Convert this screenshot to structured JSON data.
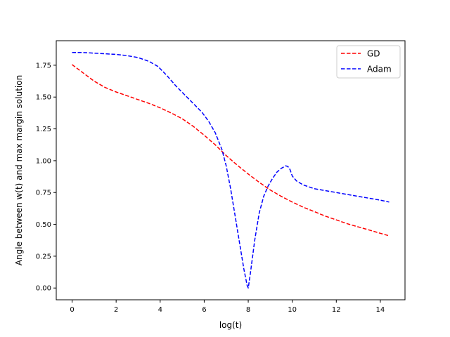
{
  "chart_data": {
    "type": "line",
    "title": "",
    "xlabel": "log(t)",
    "ylabel": "Angle between w(t) and max margin solution",
    "xlim": [
      -0.72,
      15.12
    ],
    "ylim": [
      -0.0925,
      1.9425
    ],
    "xticks": [
      0,
      2,
      4,
      6,
      8,
      10,
      12,
      14
    ],
    "xtick_labels": [
      "0",
      "2",
      "4",
      "6",
      "8",
      "10",
      "12",
      "14"
    ],
    "yticks": [
      0.0,
      0.25,
      0.5,
      0.75,
      1.0,
      1.25,
      1.5,
      1.75
    ],
    "ytick_labels": [
      "0.00",
      "0.25",
      "0.50",
      "0.75",
      "1.00",
      "1.25",
      "1.50",
      "1.75"
    ],
    "grid": false,
    "legend_position": "upper right",
    "series": [
      {
        "name": "GD",
        "color": "#ff0000",
        "linestyle": "dashed",
        "x": [
          0,
          0.5,
          1.0,
          1.5,
          2.0,
          2.5,
          3.0,
          3.5,
          4.0,
          4.5,
          5.0,
          5.5,
          6.0,
          6.5,
          7.0,
          7.5,
          8.0,
          8.5,
          9.0,
          9.5,
          10.0,
          10.5,
          11.0,
          11.5,
          12.0,
          12.5,
          13.0,
          13.5,
          14.0,
          14.4
        ],
        "y": [
          1.755,
          1.69,
          1.625,
          1.575,
          1.54,
          1.51,
          1.48,
          1.45,
          1.415,
          1.375,
          1.33,
          1.27,
          1.2,
          1.125,
          1.04,
          0.965,
          0.895,
          0.83,
          0.77,
          0.72,
          0.675,
          0.635,
          0.6,
          0.565,
          0.535,
          0.505,
          0.48,
          0.455,
          0.43,
          0.41
        ]
      },
      {
        "name": "Adam",
        "color": "#0000ff",
        "linestyle": "dashed",
        "x": [
          0,
          0.5,
          1.0,
          1.5,
          2.0,
          2.5,
          3.0,
          3.5,
          3.9,
          4.3,
          4.7,
          5.1,
          5.5,
          5.9,
          6.2,
          6.5,
          6.8,
          7.0,
          7.2,
          7.4,
          7.6,
          7.8,
          7.95,
          8.0,
          8.1,
          8.3,
          8.5,
          8.7,
          8.9,
          9.1,
          9.3,
          9.5,
          9.7,
          9.8,
          9.9,
          10.0,
          10.2,
          10.5,
          11.0,
          11.5,
          12.0,
          12.5,
          13.0,
          13.5,
          14.0,
          14.4
        ],
        "y": [
          1.85,
          1.85,
          1.845,
          1.84,
          1.835,
          1.825,
          1.81,
          1.78,
          1.74,
          1.67,
          1.59,
          1.52,
          1.45,
          1.38,
          1.31,
          1.22,
          1.09,
          0.96,
          0.78,
          0.57,
          0.36,
          0.15,
          0.02,
          0.0,
          0.12,
          0.38,
          0.59,
          0.72,
          0.8,
          0.86,
          0.91,
          0.94,
          0.96,
          0.955,
          0.93,
          0.88,
          0.84,
          0.81,
          0.78,
          0.765,
          0.75,
          0.735,
          0.72,
          0.705,
          0.69,
          0.675
        ]
      }
    ]
  }
}
